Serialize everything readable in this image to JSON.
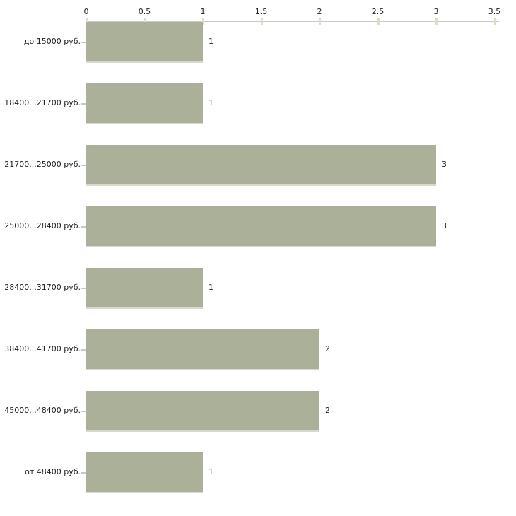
{
  "chart_data": {
    "type": "bar",
    "orientation": "horizontal",
    "title": "",
    "xlabel": "",
    "ylabel": "",
    "categories": [
      "до 15000 руб.",
      "18400...21700 руб.",
      "21700...25000 руб.",
      "25000...28400 руб.",
      "28400...31700 руб.",
      "38400...41700 руб.",
      "45000...48400 руб.",
      "от 48400 руб."
    ],
    "values": [
      1,
      1,
      3,
      3,
      1,
      2,
      2,
      1
    ],
    "value_labels": [
      "1",
      "1",
      "3",
      "3",
      "1",
      "2",
      "2",
      "1"
    ],
    "x_ticks": [
      0,
      0.5,
      1,
      1.5,
      2,
      2.5,
      3,
      3.5
    ],
    "x_tick_labels": [
      "0",
      "0.5",
      "1",
      "1.5",
      "2",
      "2.5",
      "3",
      "3.5"
    ],
    "xlim": [
      0,
      3.5
    ],
    "grid": false,
    "legend": null,
    "axis_position": "top",
    "colors": {
      "bar_fill": "#abb199",
      "bar_edge": "#d7d8ce",
      "axis_line": "#c9c9c9",
      "x_tick_mark": "#dcdfc6",
      "y_tick_mark": "#c6c9b5",
      "text": "#1c1c1c",
      "background": "#ffffff"
    }
  }
}
